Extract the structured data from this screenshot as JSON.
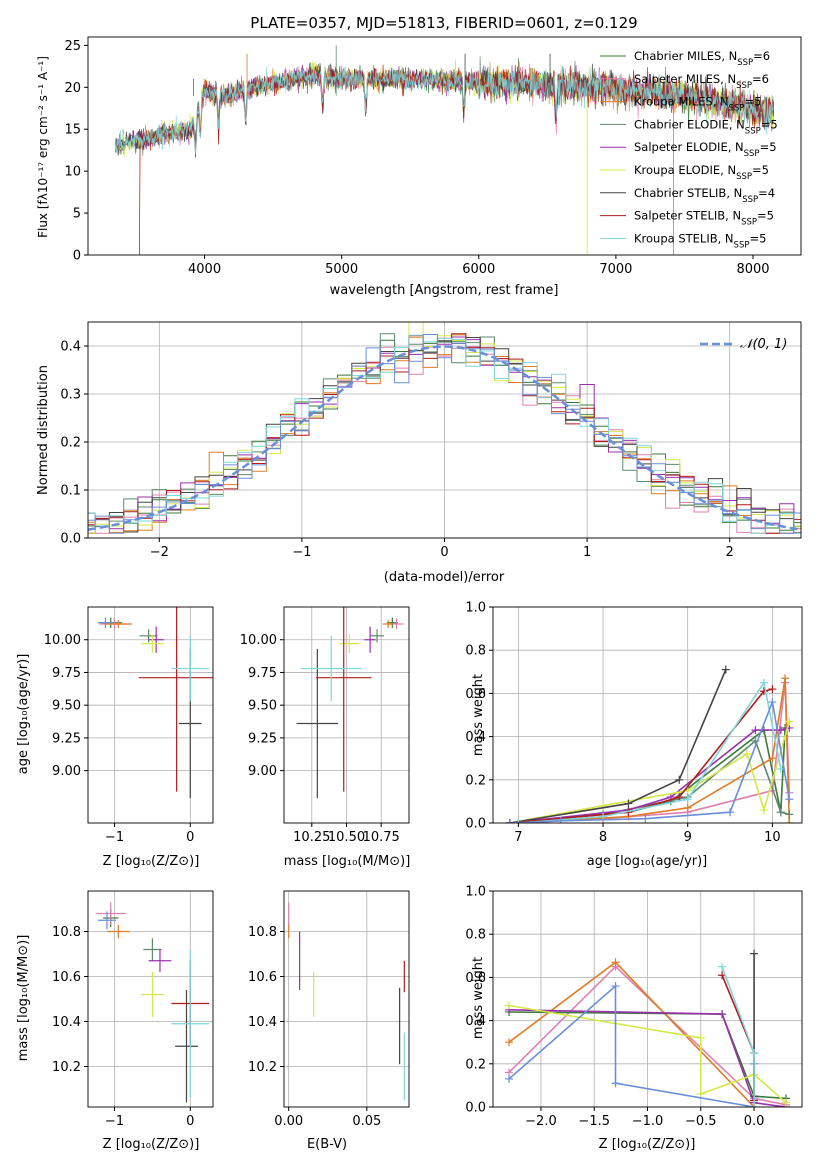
{
  "chart_data": [
    {
      "id": "spectrum",
      "type": "line",
      "title": "PLATE=0357, MJD=51813, FIBERID=0601, z=0.129",
      "xlabel": "wavelength [Angstrom, rest frame]",
      "ylabel": "Flux [fλ10⁻¹⁷ erg cm⁻² s⁻¹ A⁻¹]",
      "xlim": [
        3150,
        8350
      ],
      "ylim": [
        0,
        26
      ],
      "xticks": [
        4000,
        5000,
        6000,
        7000,
        8000
      ],
      "yticks": [
        0,
        5,
        10,
        15,
        20,
        25
      ],
      "grid": false,
      "legend": "right",
      "series": [
        {
          "name": "Chabrier MILES, N_SSP=6",
          "color": "#3a7a3a"
        },
        {
          "name": "Salpeter MILES, N_SSP=6",
          "color": "#e07fb0"
        },
        {
          "name": "Kroupa MILES, N_SSP=5",
          "color": "#e07b22"
        },
        {
          "name": "Chabrier ELODIE, N_SSP=5",
          "color": "#5f8a6e"
        },
        {
          "name": "Salpeter ELODIE, N_SSP=5",
          "color": "#9b2fae"
        },
        {
          "name": "Kroupa ELODIE, N_SSP=5",
          "color": "#d4e84a"
        },
        {
          "name": "Chabrier STELIB, N_SSP=4",
          "color": "#444444"
        },
        {
          "name": "Salpeter STELIB, N_SSP=5",
          "color": "#b01c1c"
        },
        {
          "name": "Kroupa STELIB, N_SSP=5",
          "color": "#7fd6dc"
        }
      ],
      "continuum": {
        "x": [
          3350,
          3450,
          3600,
          3750,
          3900,
          4000,
          4150,
          4300,
          4500,
          4800,
          5000,
          5400,
          5800,
          6000,
          6300,
          6600,
          6900,
          7200,
          7500,
          7800,
          8100
        ],
        "y": [
          13,
          13.5,
          14,
          14.5,
          15,
          19.5,
          19,
          19.8,
          20.5,
          21.5,
          21,
          21,
          20.8,
          20.5,
          20.5,
          20.3,
          20,
          19.5,
          19,
          18,
          17
        ]
      }
    },
    {
      "id": "residuals",
      "type": "histogram",
      "xlabel": "(data-model)/error",
      "ylabel": "Normed distribution",
      "xlim": [
        -2.5,
        2.5
      ],
      "ylim": [
        0,
        0.45
      ],
      "xticks": [
        -2,
        -1,
        0,
        1,
        2
      ],
      "yticks": [
        0.0,
        0.1,
        0.2,
        0.3,
        0.4
      ],
      "grid": true,
      "legend": "top-right",
      "reference": {
        "name": "𝒩(0, 1)",
        "color": "#6a8fd9"
      }
    },
    {
      "id": "age_vs_Z",
      "type": "scatter",
      "xlabel": "Z [log₁₀(Z/Z⊙)]",
      "ylabel": "age  [log₁₀(age/yr)]",
      "xlim": [
        -1.35,
        0.3
      ],
      "ylim": [
        8.6,
        10.25
      ],
      "xticks": [
        -1,
        0
      ],
      "yticks": [
        9.0,
        9.25,
        9.5,
        9.75,
        10.0
      ],
      "points": [
        {
          "color": "#3a7a3a",
          "x": -1.05,
          "y": 10.13,
          "xe": 0.15,
          "ye": 0.04
        },
        {
          "color": "#e07fb0",
          "x": -1.0,
          "y": 10.12,
          "xe": 0.2,
          "ye": 0.04
        },
        {
          "color": "#e07b22",
          "x": -0.95,
          "y": 10.12,
          "xe": 0.18,
          "ye": 0.03
        },
        {
          "color": "#5f8a6e",
          "x": -0.55,
          "y": 10.03,
          "xe": 0.12,
          "ye": 0.05
        },
        {
          "color": "#9b2fae",
          "x": -0.45,
          "y": 10.0,
          "xe": 0.1,
          "ye": 0.1
        },
        {
          "color": "#d4e84a",
          "x": -0.5,
          "y": 9.97,
          "xe": 0.15,
          "ye": 0.07
        },
        {
          "color": "#444444",
          "x": 0.0,
          "y": 9.36,
          "xe": 0.15,
          "ye": 0.57
        },
        {
          "color": "#b01c1c",
          "x": -0.18,
          "y": 9.71,
          "xe": 0.5,
          "ye": 0.87
        },
        {
          "color": "#7fd6dc",
          "x": 0.0,
          "y": 9.78,
          "xe": 0.25,
          "ye": 0.25
        },
        {
          "color": "#6a8fd9",
          "x": -1.12,
          "y": 10.13,
          "xe": 0.1,
          "ye": 0.04
        }
      ]
    },
    {
      "id": "age_vs_mass",
      "type": "scatter",
      "xlabel": "mass [log₁₀(M/M⊙)]",
      "ylabel": "",
      "xlim": [
        10.05,
        10.95
      ],
      "ylim": [
        8.6,
        10.25
      ],
      "xticks": [
        10.25,
        10.5,
        10.75
      ],
      "yticks": [
        9.0,
        9.25,
        9.5,
        9.75,
        10.0
      ],
      "points": [
        {
          "color": "#3a7a3a",
          "x": 10.83,
          "y": 10.13,
          "xe": 0.04,
          "ye": 0.04
        },
        {
          "color": "#e07fb0",
          "x": 10.86,
          "y": 10.12,
          "xe": 0.05,
          "ye": 0.04
        },
        {
          "color": "#e07b22",
          "x": 10.8,
          "y": 10.12,
          "xe": 0.04,
          "ye": 0.03
        },
        {
          "color": "#5f8a6e",
          "x": 10.72,
          "y": 10.03,
          "xe": 0.05,
          "ye": 0.05
        },
        {
          "color": "#9b2fae",
          "x": 10.67,
          "y": 10.0,
          "xe": 0.04,
          "ye": 0.1
        },
        {
          "color": "#d4e84a",
          "x": 10.52,
          "y": 9.97,
          "xe": 0.07,
          "ye": 0.07
        },
        {
          "color": "#444444",
          "x": 10.29,
          "y": 9.36,
          "xe": 0.15,
          "ye": 0.57
        },
        {
          "color": "#b01c1c",
          "x": 10.48,
          "y": 9.71,
          "xe": 0.2,
          "ye": 0.87
        },
        {
          "color": "#7fd6dc",
          "x": 10.39,
          "y": 9.78,
          "xe": 0.22,
          "ye": 0.25
        }
      ]
    },
    {
      "id": "massweight_vs_age",
      "type": "line",
      "xlabel": "age  [log₁₀(age/yr)]",
      "ylabel": "mass weight",
      "xlim": [
        6.7,
        10.35
      ],
      "ylim": [
        0,
        1
      ],
      "xticks": [
        7,
        8,
        9,
        10
      ],
      "yticks": [
        0.0,
        0.2,
        0.4,
        0.6,
        0.8,
        1.0
      ],
      "grid": true,
      "series": [
        {
          "color": "#3a7a3a",
          "x": [
            6.9,
            8.3,
            8.8,
            9.9,
            10.1,
            10.15
          ],
          "y": [
            0.0,
            0.05,
            0.1,
            0.43,
            0.05,
            0.44
          ]
        },
        {
          "color": "#e07fb0",
          "x": [
            7.0,
            8.0,
            9.0,
            10.0,
            10.15,
            10.2
          ],
          "y": [
            0.0,
            0.02,
            0.05,
            0.15,
            0.65,
            0.14
          ]
        },
        {
          "color": "#e07b22",
          "x": [
            7.0,
            8.3,
            9.0,
            10.0,
            10.15,
            10.2
          ],
          "y": [
            0.0,
            0.03,
            0.07,
            0.3,
            0.67,
            0.0
          ]
        },
        {
          "color": "#5f8a6e",
          "x": [
            6.9,
            8.0,
            9.0,
            9.8,
            10.1,
            10.2
          ],
          "y": [
            0.0,
            0.04,
            0.12,
            0.38,
            0.05,
            0.04
          ]
        },
        {
          "color": "#9b2fae",
          "x": [
            6.9,
            8.3,
            8.8,
            9.8,
            10.1,
            10.2
          ],
          "y": [
            0.0,
            0.06,
            0.12,
            0.43,
            0.43,
            0.44
          ]
        },
        {
          "color": "#d4e84a",
          "x": [
            6.9,
            8.0,
            9.0,
            9.7,
            9.9,
            10.2
          ],
          "y": [
            0.0,
            0.08,
            0.15,
            0.32,
            0.06,
            0.47
          ]
        },
        {
          "color": "#444444",
          "x": [
            6.9,
            8.3,
            8.9,
            9.45
          ],
          "y": [
            0.0,
            0.09,
            0.2,
            0.71
          ]
        },
        {
          "color": "#b01c1c",
          "x": [
            6.9,
            8.3,
            8.9,
            9.9,
            10.0
          ],
          "y": [
            0.0,
            0.05,
            0.12,
            0.61,
            0.62
          ]
        },
        {
          "color": "#7fd6dc",
          "x": [
            7.0,
            8.0,
            9.0,
            9.9,
            10.1
          ],
          "y": [
            0.0,
            0.03,
            0.11,
            0.65,
            0.25
          ]
        },
        {
          "color": "#6a8fd9",
          "x": [
            6.9,
            7.5,
            8.5,
            9.5,
            10.0,
            10.2
          ],
          "y": [
            0.0,
            0.01,
            0.02,
            0.05,
            0.56,
            0.11
          ]
        }
      ]
    },
    {
      "id": "mass_vs_Z",
      "type": "scatter",
      "xlabel": "Z [log₁₀(Z/Z⊙)]",
      "ylabel": "mass [log₁₀(M/M⊙)]",
      "xlim": [
        -1.35,
        0.3
      ],
      "ylim": [
        10.02,
        10.98
      ],
      "xticks": [
        -1,
        0
      ],
      "yticks": [
        10.2,
        10.4,
        10.6,
        10.8
      ],
      "points": [
        {
          "color": "#3a7a3a",
          "x": -1.05,
          "y": 10.86,
          "xe": 0.1,
          "ye": 0.04
        },
        {
          "color": "#e07fb0",
          "x": -1.05,
          "y": 10.88,
          "xe": 0.2,
          "ye": 0.05
        },
        {
          "color": "#e07b22",
          "x": -0.95,
          "y": 10.8,
          "xe": 0.15,
          "ye": 0.03
        },
        {
          "color": "#5f8a6e",
          "x": -0.5,
          "y": 10.72,
          "xe": 0.12,
          "ye": 0.05
        },
        {
          "color": "#9b2fae",
          "x": -0.4,
          "y": 10.67,
          "xe": 0.15,
          "ye": 0.05
        },
        {
          "color": "#d4e84a",
          "x": -0.5,
          "y": 10.52,
          "xe": 0.15,
          "ye": 0.1
        },
        {
          "color": "#444444",
          "x": -0.05,
          "y": 10.29,
          "xe": 0.15,
          "ye": 0.25
        },
        {
          "color": "#b01c1c",
          "x": 0.0,
          "y": 10.48,
          "xe": 0.25,
          "ye": 0.19
        },
        {
          "color": "#7fd6dc",
          "x": 0.0,
          "y": 10.39,
          "xe": 0.25,
          "ye": 0.33
        },
        {
          "color": "#6a8fd9",
          "x": -1.1,
          "y": 10.85,
          "xe": 0.12,
          "ye": 0.04
        }
      ]
    },
    {
      "id": "mass_vs_EBV",
      "type": "scatter",
      "xlabel": "E(B-V)",
      "ylabel": "",
      "xlim": [
        -0.003,
        0.077
      ],
      "ylim": [
        10.02,
        10.98
      ],
      "xticks": [
        0.0,
        0.05
      ],
      "yticks": [
        10.2,
        10.4,
        10.6,
        10.8
      ],
      "points": [
        {
          "color": "#e07fb0",
          "x": 0.0,
          "y": 10.88,
          "xe": 0,
          "ye": 0.05
        },
        {
          "color": "#e07b22",
          "x": 0.0,
          "y": 10.8,
          "xe": 0,
          "ye": 0.03
        },
        {
          "color": "#9b2fae",
          "x": 0.007,
          "y": 10.67,
          "xe": 0,
          "ye": 0.13
        },
        {
          "color": "#d4e84a",
          "x": 0.016,
          "y": 10.52,
          "xe": 0,
          "ye": 0.1
        },
        {
          "color": "#444444",
          "x": 0.071,
          "y": 10.38,
          "xe": 0,
          "ye": 0.17
        },
        {
          "color": "#b01c1c",
          "x": 0.074,
          "y": 10.6,
          "xe": 0,
          "ye": 0.07
        },
        {
          "color": "#7fd6dc",
          "x": 0.074,
          "y": 10.2,
          "xe": 0,
          "ye": 0.15
        }
      ]
    },
    {
      "id": "massweight_vs_Z",
      "type": "line",
      "xlabel": "Z [log₁₀(Z/Z⊙)]",
      "ylabel": "mass weight",
      "xlim": [
        -2.45,
        0.45
      ],
      "ylim": [
        0,
        1
      ],
      "xticks": [
        -2.0,
        -1.5,
        -1.0,
        -0.5,
        0.0
      ],
      "yticks": [
        0.0,
        0.2,
        0.4,
        0.6,
        0.8,
        1.0
      ],
      "grid": true,
      "series": [
        {
          "color": "#e07fb0",
          "x": [
            -2.3,
            -1.3,
            0.0,
            0.3
          ],
          "y": [
            0.16,
            0.65,
            0.04,
            0.01
          ]
        },
        {
          "color": "#e07b22",
          "x": [
            -2.3,
            -1.3,
            0.0,
            0.0
          ],
          "y": [
            0.3,
            0.67,
            0.0,
            0.02
          ]
        },
        {
          "color": "#3a7a3a",
          "x": [
            -2.3,
            -0.3,
            0.0,
            0.3
          ],
          "y": [
            0.44,
            0.43,
            0.05,
            0.04
          ]
        },
        {
          "color": "#9b2fae",
          "x": [
            -2.3,
            -0.3,
            0.0,
            0.3
          ],
          "y": [
            0.45,
            0.43,
            0.02,
            0.0
          ]
        },
        {
          "color": "#d4e84a",
          "x": [
            -2.3,
            -0.5,
            -0.5,
            0.0,
            0.3
          ],
          "y": [
            0.47,
            0.32,
            0.06,
            0.15,
            0.02
          ]
        },
        {
          "color": "#6a8fd9",
          "x": [
            -2.3,
            -1.3,
            -1.3,
            0.0,
            0.0
          ],
          "y": [
            0.13,
            0.56,
            0.11,
            0.0,
            0.2
          ]
        },
        {
          "color": "#444444",
          "x": [
            0.0,
            0.0
          ],
          "y": [
            0.71,
            0.05
          ]
        },
        {
          "color": "#b01c1c",
          "x": [
            -0.3,
            0.0,
            0.0
          ],
          "y": [
            0.61,
            0.25,
            0.03
          ]
        },
        {
          "color": "#7fd6dc",
          "x": [
            -0.3,
            0.0,
            0.0
          ],
          "y": [
            0.65,
            0.25,
            0.0
          ]
        }
      ]
    }
  ]
}
